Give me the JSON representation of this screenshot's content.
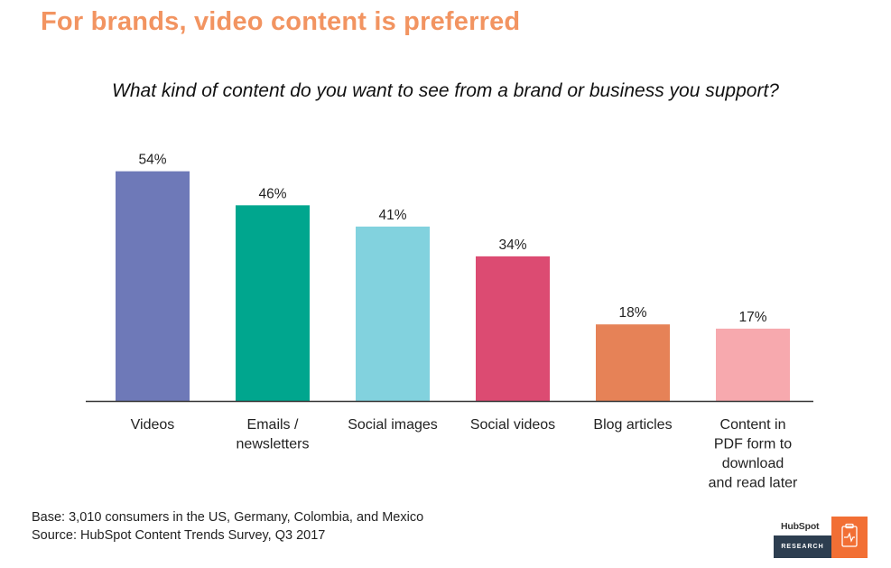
{
  "header": {
    "headline": "For brands, video content is preferred"
  },
  "chart_data": {
    "type": "bar",
    "title": "What kind of content do you want to see from a brand or business you support?",
    "categories": [
      [
        "Videos"
      ],
      [
        "Emails /",
        "newsletters"
      ],
      [
        "Social images"
      ],
      [
        "Social videos"
      ],
      [
        "Blog articles"
      ],
      [
        "Content in",
        "PDF form to",
        "download",
        "and read later"
      ]
    ],
    "values": [
      54,
      46,
      41,
      34,
      18,
      17
    ],
    "data_labels": [
      "54%",
      "46%",
      "41%",
      "34%",
      "18%",
      "17%"
    ],
    "colors": [
      "#6e79b8",
      "#00a68e",
      "#82d2de",
      "#dc4b72",
      "#e68257",
      "#f7a9ae"
    ],
    "ylim": [
      0,
      60
    ],
    "grid": false,
    "legend": "none"
  },
  "footer": {
    "base": "Base: 3,010 consumers in the US, Germany, Colombia, and Mexico",
    "source": "Source: HubSpot Content Trends Survey, Q3 2017"
  },
  "badge": {
    "brand": "HubSpot",
    "label": "RESEARCH",
    "icon": "clipboard-pulse-icon"
  }
}
